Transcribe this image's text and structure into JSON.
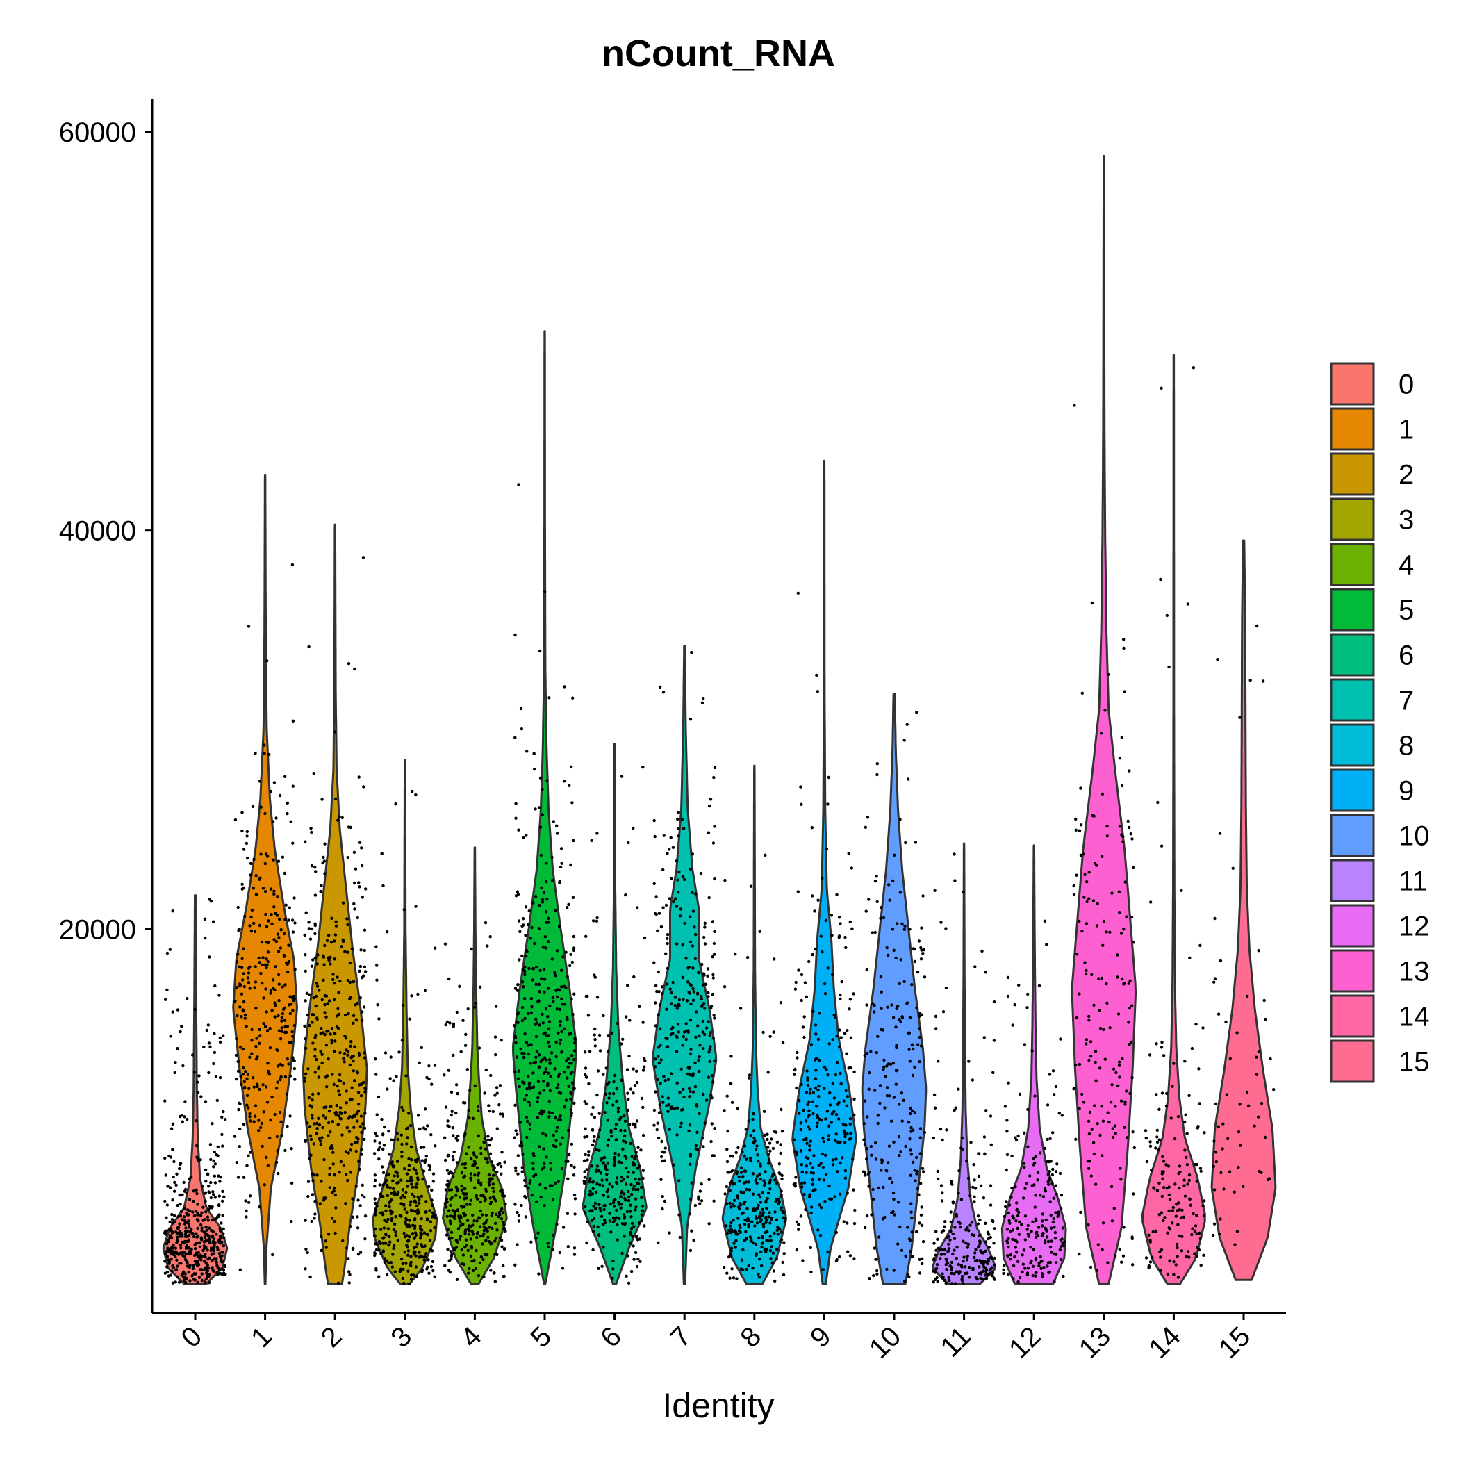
{
  "chart_data": {
    "type": "violin",
    "title": "nCount_RNA",
    "xlabel": "Identity",
    "ylabel": "",
    "ylim": [
      0,
      61500
    ],
    "yticks": [
      20000,
      40000,
      60000
    ],
    "grid": false,
    "legend_position": "right",
    "categories": [
      "0",
      "1",
      "2",
      "3",
      "4",
      "5",
      "6",
      "7",
      "8",
      "9",
      "10",
      "11",
      "12",
      "13",
      "14",
      "15"
    ],
    "colors": [
      "#F8766D",
      "#E58700",
      "#C99800",
      "#A3A500",
      "#6BB100",
      "#00BA38",
      "#00BF7D",
      "#00C0AF",
      "#00BCD8",
      "#00B0F6",
      "#619CFF",
      "#B983FF",
      "#E76BF3",
      "#FD61D1",
      "#FF67A4",
      "#FF6C91"
    ],
    "legend": [
      "0",
      "1",
      "2",
      "3",
      "4",
      "5",
      "6",
      "7",
      "8",
      "9",
      "10",
      "11",
      "12",
      "13",
      "14",
      "15"
    ],
    "violins": [
      {
        "min": 2200,
        "max": 21700,
        "profile": [
          [
            2200,
            0.35
          ],
          [
            3000,
            0.85
          ],
          [
            4000,
            1.0
          ],
          [
            5000,
            0.8
          ],
          [
            6000,
            0.35
          ],
          [
            7500,
            0.15
          ],
          [
            9500,
            0.08
          ],
          [
            12000,
            0.05
          ],
          [
            16000,
            0.03
          ],
          [
            21700,
            0.01
          ]
        ]
      },
      {
        "min": 2200,
        "max": 42800,
        "profile": [
          [
            2200,
            0.01
          ],
          [
            4000,
            0.04
          ],
          [
            7000,
            0.18
          ],
          [
            10000,
            0.55
          ],
          [
            13000,
            0.8
          ],
          [
            16000,
            1.0
          ],
          [
            18500,
            0.9
          ],
          [
            21000,
            0.6
          ],
          [
            24000,
            0.3
          ],
          [
            26500,
            0.15
          ],
          [
            30000,
            0.05
          ],
          [
            35000,
            0.02
          ],
          [
            42800,
            0.005
          ]
        ]
      },
      {
        "min": 2200,
        "max": 40300,
        "profile": [
          [
            2200,
            0.22
          ],
          [
            3000,
            0.3
          ],
          [
            5000,
            0.45
          ],
          [
            8000,
            0.75
          ],
          [
            11000,
            0.95
          ],
          [
            13000,
            1.0
          ],
          [
            16000,
            0.8
          ],
          [
            19000,
            0.55
          ],
          [
            22000,
            0.35
          ],
          [
            25000,
            0.15
          ],
          [
            28000,
            0.05
          ],
          [
            32000,
            0.02
          ],
          [
            40300,
            0.005
          ]
        ]
      },
      {
        "min": 2200,
        "max": 28500,
        "profile": [
          [
            2200,
            0.15
          ],
          [
            3000,
            0.55
          ],
          [
            4500,
            0.95
          ],
          [
            5500,
            1.0
          ],
          [
            7000,
            0.7
          ],
          [
            9000,
            0.35
          ],
          [
            11000,
            0.18
          ],
          [
            13000,
            0.09
          ],
          [
            16000,
            0.05
          ],
          [
            20000,
            0.02
          ],
          [
            28500,
            0.005
          ]
        ]
      },
      {
        "min": 2200,
        "max": 24100,
        "profile": [
          [
            2200,
            0.12
          ],
          [
            3500,
            0.6
          ],
          [
            5500,
            1.0
          ],
          [
            7000,
            0.85
          ],
          [
            8500,
            0.45
          ],
          [
            10500,
            0.22
          ],
          [
            12500,
            0.13
          ],
          [
            14000,
            0.08
          ],
          [
            17000,
            0.04
          ],
          [
            20000,
            0.02
          ],
          [
            24100,
            0.005
          ]
        ]
      },
      {
        "min": 2200,
        "max": 50000,
        "profile": [
          [
            2200,
            0.02
          ],
          [
            5000,
            0.35
          ],
          [
            8000,
            0.65
          ],
          [
            12000,
            0.9
          ],
          [
            14000,
            1.0
          ],
          [
            17000,
            0.78
          ],
          [
            20000,
            0.5
          ],
          [
            23000,
            0.25
          ],
          [
            26000,
            0.12
          ],
          [
            29000,
            0.06
          ],
          [
            33000,
            0.02
          ],
          [
            40000,
            0.01
          ],
          [
            50000,
            0.005
          ]
        ]
      },
      {
        "min": 2200,
        "max": 29300,
        "profile": [
          [
            2200,
            0.05
          ],
          [
            4000,
            0.45
          ],
          [
            6000,
            1.0
          ],
          [
            8000,
            0.8
          ],
          [
            10000,
            0.45
          ],
          [
            12500,
            0.25
          ],
          [
            15000,
            0.12
          ],
          [
            18000,
            0.05
          ],
          [
            22000,
            0.02
          ],
          [
            29300,
            0.005
          ]
        ]
      },
      {
        "min": 2200,
        "max": 34200,
        "profile": [
          [
            2200,
            0.02
          ],
          [
            5000,
            0.08
          ],
          [
            8000,
            0.35
          ],
          [
            11000,
            0.75
          ],
          [
            13500,
            1.0
          ],
          [
            16000,
            0.78
          ],
          [
            18500,
            0.45
          ],
          [
            21000,
            0.45
          ],
          [
            23000,
            0.25
          ],
          [
            26000,
            0.1
          ],
          [
            30000,
            0.04
          ],
          [
            34200,
            0.01
          ]
        ]
      },
      {
        "min": 2200,
        "max": 28200,
        "profile": [
          [
            2200,
            0.25
          ],
          [
            3500,
            0.7
          ],
          [
            5500,
            1.0
          ],
          [
            7000,
            0.8
          ],
          [
            8500,
            0.45
          ],
          [
            10000,
            0.2
          ],
          [
            12000,
            0.1
          ],
          [
            14000,
            0.05
          ],
          [
            18000,
            0.02
          ],
          [
            28200,
            0.005
          ]
        ]
      },
      {
        "min": 2200,
        "max": 43500,
        "profile": [
          [
            2200,
            0.05
          ],
          [
            4000,
            0.2
          ],
          [
            7000,
            0.75
          ],
          [
            9500,
            1.0
          ],
          [
            12000,
            0.78
          ],
          [
            14500,
            0.45
          ],
          [
            17000,
            0.3
          ],
          [
            19500,
            0.22
          ],
          [
            22000,
            0.08
          ],
          [
            26000,
            0.03
          ],
          [
            32000,
            0.01
          ],
          [
            43500,
            0.005
          ]
        ]
      },
      {
        "min": 2200,
        "max": 31800,
        "profile": [
          [
            2200,
            0.35
          ],
          [
            4000,
            0.55
          ],
          [
            7000,
            0.75
          ],
          [
            10000,
            0.95
          ],
          [
            12000,
            1.0
          ],
          [
            14000,
            0.9
          ],
          [
            17000,
            0.65
          ],
          [
            20000,
            0.45
          ],
          [
            23000,
            0.25
          ],
          [
            26000,
            0.12
          ],
          [
            29000,
            0.05
          ],
          [
            31800,
            0.02
          ]
        ]
      },
      {
        "min": 2200,
        "max": 24300,
        "profile": [
          [
            2200,
            0.5
          ],
          [
            3000,
            1.0
          ],
          [
            4000,
            0.75
          ],
          [
            5000,
            0.4
          ],
          [
            6500,
            0.2
          ],
          [
            8500,
            0.1
          ],
          [
            11000,
            0.05
          ],
          [
            14000,
            0.03
          ],
          [
            18000,
            0.015
          ],
          [
            24300,
            0.005
          ]
        ]
      },
      {
        "min": 2200,
        "max": 24200,
        "profile": [
          [
            2200,
            0.6
          ],
          [
            3500,
            0.95
          ],
          [
            5000,
            1.0
          ],
          [
            6500,
            0.75
          ],
          [
            8000,
            0.4
          ],
          [
            10000,
            0.18
          ],
          [
            12500,
            0.08
          ],
          [
            15000,
            0.05
          ],
          [
            18000,
            0.03
          ],
          [
            20000,
            0.02
          ],
          [
            24200,
            0.005
          ]
        ]
      },
      {
        "min": 2200,
        "max": 58800,
        "profile": [
          [
            2200,
            0.15
          ],
          [
            5000,
            0.55
          ],
          [
            9000,
            0.75
          ],
          [
            13000,
            0.9
          ],
          [
            17000,
            1.0
          ],
          [
            20000,
            0.85
          ],
          [
            24000,
            0.65
          ],
          [
            28000,
            0.35
          ],
          [
            31000,
            0.15
          ],
          [
            35000,
            0.08
          ],
          [
            40000,
            0.04
          ],
          [
            45000,
            0.02
          ],
          [
            58800,
            0.005
          ]
        ]
      },
      {
        "min": 2200,
        "max": 48800,
        "profile": [
          [
            2200,
            0.2
          ],
          [
            3500,
            0.7
          ],
          [
            5500,
            1.0
          ],
          [
            7500,
            0.75
          ],
          [
            9500,
            0.35
          ],
          [
            11500,
            0.18
          ],
          [
            14000,
            0.08
          ],
          [
            17000,
            0.04
          ],
          [
            22000,
            0.02
          ],
          [
            30000,
            0.01
          ],
          [
            48800,
            0.005
          ]
        ]
      },
      {
        "min": 2400,
        "max": 39500,
        "profile": [
          [
            2400,
            0.25
          ],
          [
            4500,
            0.75
          ],
          [
            7000,
            1.0
          ],
          [
            10000,
            0.9
          ],
          [
            13000,
            0.6
          ],
          [
            16000,
            0.35
          ],
          [
            19000,
            0.18
          ],
          [
            22000,
            0.1
          ],
          [
            26000,
            0.07
          ],
          [
            30000,
            0.06
          ],
          [
            35000,
            0.05
          ],
          [
            39500,
            0.02
          ]
        ]
      }
    ],
    "point_counts": [
      500,
      320,
      400,
      380,
      360,
      400,
      330,
      310,
      300,
      260,
      240,
      240,
      220,
      180,
      160,
      60
    ]
  }
}
